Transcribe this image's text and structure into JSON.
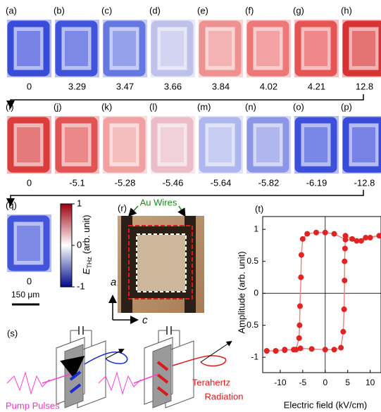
{
  "maps": [
    [
      {
        "label": "(a)",
        "field": 0,
        "color": "#2a3fd6"
      },
      {
        "label": "(b)",
        "field": 3.29,
        "color": "#3348d8"
      },
      {
        "label": "(c)",
        "field": 3.47,
        "color": "#5a6fe0"
      },
      {
        "label": "(d)",
        "field": 3.66,
        "color": "#b9bde8"
      },
      {
        "label": "(e)",
        "field": 3.84,
        "color": "#ee8a8a"
      },
      {
        "label": "(f)",
        "field": 4.02,
        "color": "#ec6f6f"
      },
      {
        "label": "(g)",
        "field": 4.21,
        "color": "#e64848"
      },
      {
        "label": "(h)",
        "field": 12.8,
        "color": "#d42525"
      }
    ],
    [
      {
        "label": "(i)",
        "field": 0,
        "color": "#d83030"
      },
      {
        "label": "(j)",
        "field": -5.1,
        "color": "#e04848"
      },
      {
        "label": "(k)",
        "field": -5.28,
        "color": "#ef9a9a"
      },
      {
        "label": "(l)",
        "field": -5.46,
        "color": "#e8b8c4"
      },
      {
        "label": "(m)",
        "field": -5.64,
        "color": "#a9b3ec"
      },
      {
        "label": "(n)",
        "field": -5.82,
        "color": "#8390e4"
      },
      {
        "label": "(o)",
        "field": -6.19,
        "color": "#2f44d8"
      },
      {
        "label": "(p)",
        "field": -12.8,
        "color": "#2a3fd6"
      }
    ],
    [
      {
        "label": "(q)",
        "field": 0,
        "color": "#3448d8"
      }
    ]
  ],
  "colorbar": {
    "symbol": "E",
    "subscript": "THz",
    "unit": "(arb. unit)",
    "ticks": [
      1,
      0,
      -1
    ],
    "colors": [
      "#9e0010",
      "#ffffff",
      "#000a8c"
    ]
  },
  "scale_bar": "150 μm",
  "photo": {
    "label": "(r)",
    "wires": "Au Wires",
    "axis_a": "a",
    "axis_c": "c"
  },
  "schematic": {
    "label": "(s)",
    "pump": "Pump Pulses",
    "thz_line1": "Terahertz",
    "thz_line2": "Radiation"
  },
  "chart_data": {
    "type": "scatter",
    "label": "(t)",
    "x_label": "Electric field (kV/cm)",
    "y_label": "Amplitude (arb. unit)",
    "xlim": [
      -13.9,
      12.4
    ],
    "ylim": [
      -1.24,
      1.2
    ],
    "xticks": [
      -10,
      -5,
      0,
      5,
      10
    ],
    "yticks": [
      -1,
      -0.5,
      0,
      0.5,
      1
    ],
    "series": [
      {
        "color": "#e02424",
        "line_color": "#e48a8a",
        "x": [
          -13,
          -11,
          -9,
          -7,
          -5.5,
          -3,
          0,
          2,
          3.5,
          4,
          4.2,
          4.3,
          4.3,
          4.4,
          4.5,
          6,
          8,
          10,
          12,
          9,
          7,
          4.5,
          2,
          0,
          -2,
          -4,
          -5,
          -5.3,
          -5.4,
          -5.6,
          -5.7,
          -5.8,
          -6.5,
          -9,
          -11,
          -13
        ],
        "values": [
          -0.9,
          -0.9,
          -0.88,
          -0.88,
          -0.86,
          -0.87,
          -0.88,
          -0.88,
          -0.85,
          -0.6,
          -0.25,
          0.2,
          0.5,
          0.7,
          0.9,
          0.85,
          0.82,
          0.87,
          0.9,
          0.87,
          0.82,
          0.84,
          0.93,
          0.95,
          0.95,
          0.93,
          0.85,
          0.6,
          0.25,
          -0.2,
          -0.5,
          -0.7,
          -0.88,
          -0.89,
          -0.9,
          -0.9
        ]
      }
    ]
  }
}
